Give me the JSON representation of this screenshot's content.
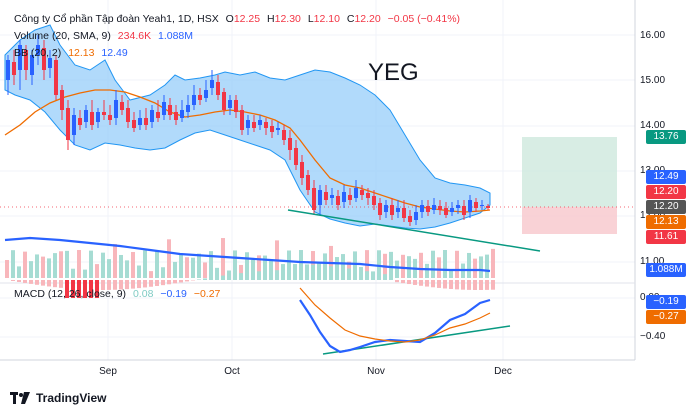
{
  "header": {
    "symbol_title": "Công ty Cổ phần Tập đoàn Yeah1, 1D, HSX",
    "o_label": "O",
    "o_value": "12.25",
    "h_label": "H",
    "h_value": "12.30",
    "l_label": "L",
    "l_value": "12.10",
    "c_label": "C",
    "c_value": "12.20",
    "change": "−0.05 (−0.41%)",
    "volume_label": "Volume (20, SMA, 9)",
    "volume_value": "234.6K",
    "volume_sma": "1.088M",
    "bb_label": "BB (20, 2)",
    "bb_mid": "12.13",
    "bb_upper": "12.49",
    "macd_label": "MACD (12, 26, close, 9)",
    "macd_hist": "0.08",
    "macd_value": "−0.19",
    "macd_signal": "−0.27"
  },
  "watermark": "YEG",
  "price_axis": [
    "16.00",
    "15.00",
    "14.00",
    "13.00",
    "12.00",
    "11.00"
  ],
  "macd_axis": [
    "0.00",
    "−0.40"
  ],
  "price_tags": [
    {
      "label": "13.76",
      "color": "#089981"
    },
    {
      "label": "12.49",
      "color": "#2962ff"
    },
    {
      "label": "12.20",
      "color": "#f23645"
    },
    {
      "label": "12.20",
      "color": "#555555"
    },
    {
      "label": "12.13",
      "color": "#ef6c00"
    },
    {
      "label": "11.61",
      "color": "#f23645"
    },
    {
      "label": "1.088M",
      "color": "#2962ff"
    },
    {
      "label": "−0.19",
      "color": "#2962ff"
    },
    {
      "label": "−0.27",
      "color": "#ef6c00"
    }
  ],
  "x_axis": [
    "Sep",
    "Oct",
    "Nov",
    "Dec"
  ],
  "branding": {
    "logo_text": "TradingView"
  },
  "colors": {
    "up": "#2962ff",
    "down": "#f23645",
    "bb_fill": "#90caf9",
    "sma": "#ef6c00",
    "macd": "#2962ff",
    "trend": "#089981"
  }
}
